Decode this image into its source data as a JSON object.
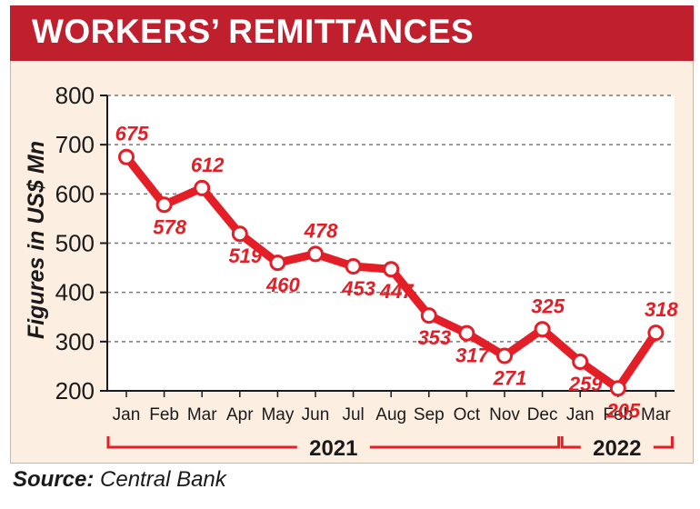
{
  "title": "WORKERS’ REMITTANCES",
  "source_label": "Source:",
  "source_value": "Central Bank",
  "colors": {
    "accent": "#c0202e",
    "line": "#e31e26",
    "background": "#fdeee2",
    "grid": "#777777"
  },
  "chart_data": {
    "type": "line",
    "title": "WORKERS’ REMITTANCES",
    "ylabel": "Figures in US$ Mn",
    "xlabel": "",
    "ylim": [
      200,
      800
    ],
    "yticks": [
      200,
      300,
      400,
      500,
      600,
      700,
      800
    ],
    "grid": true,
    "categories": [
      "Jan",
      "Feb",
      "Mar",
      "Apr",
      "May",
      "Jun",
      "Jul",
      "Aug",
      "Sep",
      "Oct",
      "Nov",
      "Dec",
      "Jan",
      "Feb",
      "Mar"
    ],
    "values": [
      675,
      578,
      612,
      519,
      460,
      478,
      453,
      447,
      353,
      317,
      271,
      325,
      259,
      205,
      318
    ],
    "year_groups": [
      {
        "label": "2021",
        "start": 0,
        "end": 11
      },
      {
        "label": "2022",
        "start": 12,
        "end": 14
      }
    ]
  }
}
